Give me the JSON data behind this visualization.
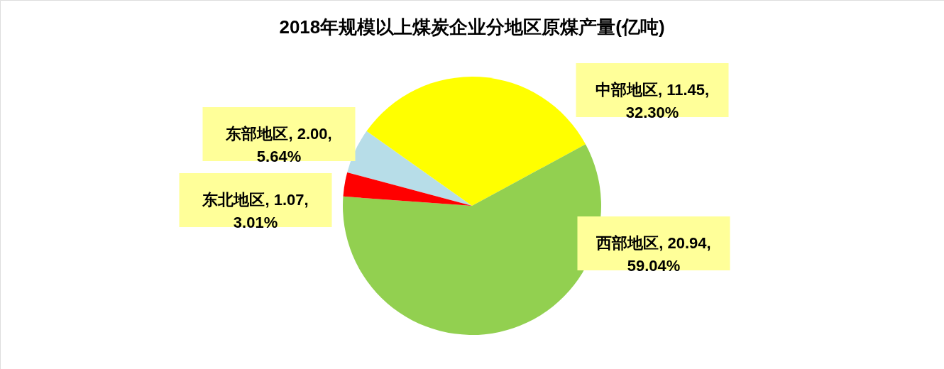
{
  "chart_data": {
    "type": "pie",
    "title": "2018年规模以上煤炭企业分地区原煤产量(亿吨)",
    "categories": [
      "东部地区",
      "中部地区",
      "西部地区",
      "东北地区"
    ],
    "values": [
      2.0,
      11.45,
      20.94,
      1.07
    ],
    "colors": [
      "#b7dde8",
      "#ffff00",
      "#92d050",
      "#ff0000"
    ],
    "value_labels": [
      "2.00,\n5.64%",
      "11.45,\n32.30%",
      "20.94,\n59.04%",
      "1.07,\n3.01%"
    ]
  }
}
